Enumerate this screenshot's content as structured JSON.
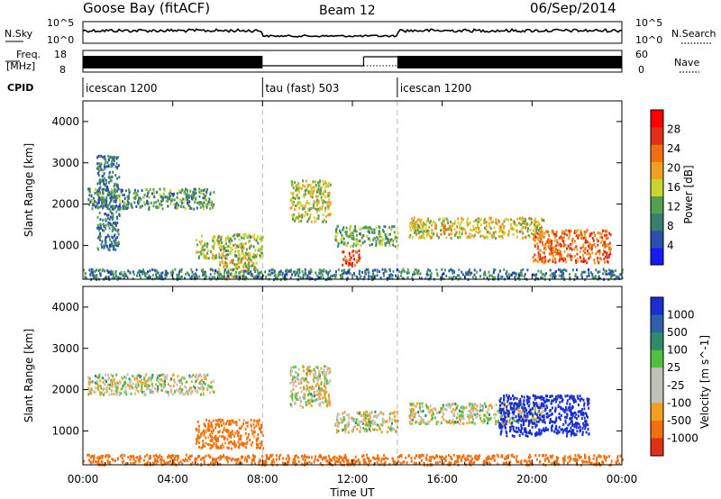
{
  "header": {
    "station": "Goose Bay (fitACF)",
    "beam": "Beam 12",
    "date": "06/Sep/2014"
  },
  "panels": {
    "nsky_label": "N.Sky",
    "nsky_ticks": [
      "10^5",
      "10^0"
    ],
    "nsearch_label": "N.Search",
    "nsearch_ticks": [
      "10^5",
      "10^0"
    ],
    "freq_label_1": "Freq.",
    "freq_label_2": "[MHz]",
    "freq_ticks": [
      "18",
      "8"
    ],
    "nave_label": "Nave",
    "nave_ticks": [
      "60",
      "0"
    ],
    "cpid_label": "CPID",
    "cpid_segments": [
      {
        "label": "icescan 1200",
        "start_hour": 0,
        "end_hour": 8
      },
      {
        "label": "tau (fast) 503",
        "start_hour": 8,
        "end_hour": 14
      },
      {
        "label": "icescan 1200",
        "start_hour": 14,
        "end_hour": 24
      }
    ]
  },
  "axes": {
    "xlabel": "Time UT",
    "ylabel_range": "Slant Range [km]",
    "time_ticks": [
      "00:00",
      "04:00",
      "08:00",
      "12:00",
      "16:00",
      "20:00",
      "00:00"
    ],
    "range_ticks": [
      "1000",
      "2000",
      "3000",
      "4000"
    ]
  },
  "power_scale": {
    "label": "Power [dB]",
    "ticks": [
      "4",
      "8",
      "12",
      "16",
      "20",
      "24",
      "28"
    ],
    "colors": [
      "#1a1aff",
      "#2b4fb0",
      "#3a7f6e",
      "#55a050",
      "#c8d430",
      "#f0a020",
      "#f07010",
      "#e03018",
      "#ff0000"
    ]
  },
  "velocity_scale": {
    "label": "Velocity [m s^-1]",
    "ticks": [
      "1000",
      "500",
      "100",
      "25",
      "-25",
      "-100",
      "-500",
      "-1000"
    ],
    "colors": [
      "#1a2fd0",
      "#2e5fa8",
      "#2f8a6a",
      "#50c040",
      "#c0c0b8",
      "#c0c0b8",
      "#f0a020",
      "#f07010",
      "#e03018"
    ]
  },
  "chart_data": [
    {
      "type": "heatmap",
      "title": "Power",
      "xlabel": "Time UT",
      "ylabel": "Slant Range [km]",
      "x_range_hours": [
        0,
        24
      ],
      "y_range_km": [
        180,
        4500
      ],
      "colorbar": {
        "label": "Power [dB]",
        "range": [
          0,
          30
        ]
      },
      "echo_regions": [
        {
          "start_hour": 0.2,
          "end_hour": 5.8,
          "range_km": [
            1900,
            2400
          ],
          "level": 10
        },
        {
          "start_hour": 0.6,
          "end_hour": 1.6,
          "range_km": [
            900,
            3200
          ],
          "level": 8
        },
        {
          "start_hour": 5.0,
          "end_hour": 8.0,
          "range_km": [
            700,
            1300
          ],
          "level": 14
        },
        {
          "start_hour": 6.0,
          "end_hour": 7.7,
          "range_km": [
            200,
            700
          ],
          "level": 16
        },
        {
          "start_hour": 9.2,
          "end_hour": 11.0,
          "range_km": [
            1600,
            2600
          ],
          "level": 15
        },
        {
          "start_hour": 11.2,
          "end_hour": 14.0,
          "range_km": [
            1000,
            1500
          ],
          "level": 12
        },
        {
          "start_hour": 11.5,
          "end_hour": 12.3,
          "range_km": [
            500,
            900
          ],
          "level": 24
        },
        {
          "start_hour": 14.5,
          "end_hour": 20.5,
          "range_km": [
            1200,
            1700
          ],
          "level": 16
        },
        {
          "start_hour": 20.0,
          "end_hour": 23.5,
          "range_km": [
            600,
            1400
          ],
          "level": 22
        },
        {
          "start_hour": 0.0,
          "end_hour": 24.0,
          "range_km": [
            200,
            450
          ],
          "level": 8
        }
      ]
    },
    {
      "type": "heatmap",
      "title": "Velocity",
      "xlabel": "Time UT",
      "ylabel": "Slant Range [km]",
      "x_range_hours": [
        0,
        24
      ],
      "y_range_km": [
        180,
        4500
      ],
      "colorbar": {
        "label": "Velocity [m s^-1]",
        "range": [
          -1000,
          1000
        ]
      },
      "echo_regions": [
        {
          "start_hour": 0.2,
          "end_hour": 5.8,
          "range_km": [
            1900,
            2400
          ],
          "level": 0
        },
        {
          "start_hour": 5.0,
          "end_hour": 8.0,
          "range_km": [
            600,
            1300
          ],
          "level": -150
        },
        {
          "start_hour": 9.2,
          "end_hour": 11.0,
          "range_km": [
            1600,
            2600
          ],
          "level": 0
        },
        {
          "start_hour": 11.2,
          "end_hour": 14.0,
          "range_km": [
            1000,
            1500
          ],
          "level": 0
        },
        {
          "start_hour": 14.5,
          "end_hour": 20.5,
          "range_km": [
            1200,
            1700
          ],
          "level": 0
        },
        {
          "start_hour": 18.5,
          "end_hour": 22.5,
          "range_km": [
            900,
            1900
          ],
          "level": 600
        },
        {
          "start_hour": 0.0,
          "end_hour": 24.0,
          "range_km": [
            200,
            450
          ],
          "level": -200
        }
      ]
    }
  ]
}
